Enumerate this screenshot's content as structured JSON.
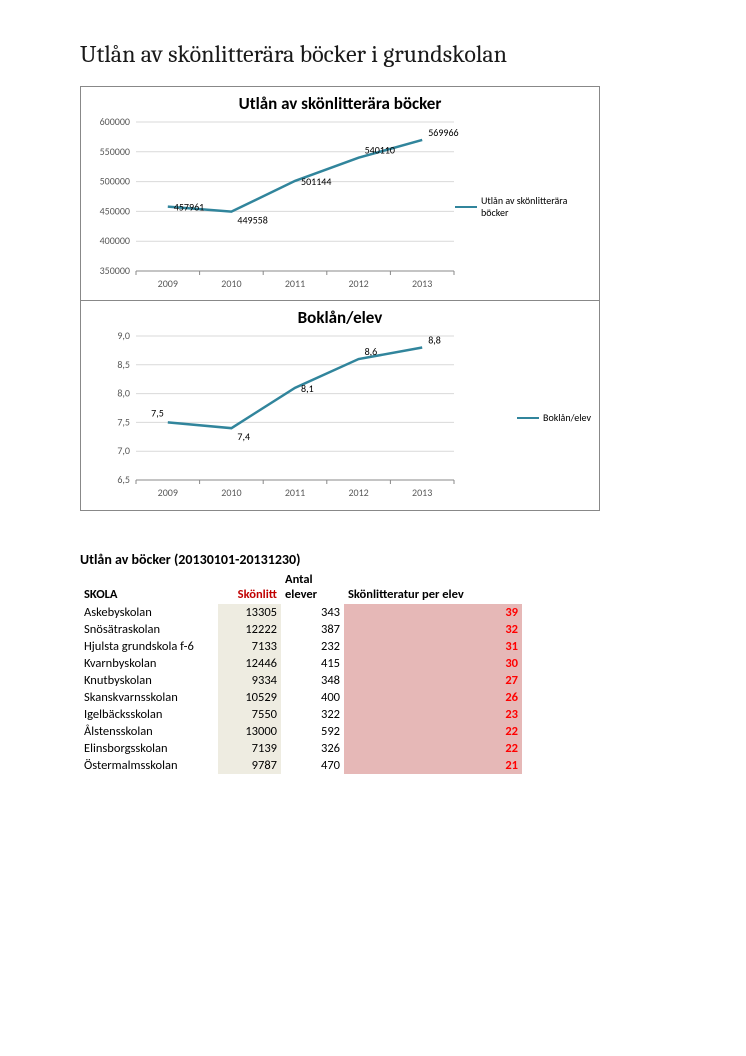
{
  "pageTitle": "Utlån av skölitterära böcker i grundskolan",
  "pageTitleActual": "Utlån av skönlitterära böcker i grundskolan",
  "chart1": {
    "type": "line",
    "title": "Utlån av skönlitterära böcker",
    "legend": "Utlån av skönlitterära böcker",
    "lineColor": "#31859c",
    "gridColor": "#d9d9d9",
    "axisColor": "#888888",
    "background": "#ffffff",
    "categories": [
      "2009",
      "2010",
      "2011",
      "2012",
      "2013"
    ],
    "values": [
      457961,
      449558,
      501144,
      540110,
      569966
    ],
    "ylim": [
      350000,
      600000
    ],
    "ytick_step": 50000,
    "title_fontsize": 17,
    "label_fontsize": 10
  },
  "chart2": {
    "type": "line",
    "title": "Boklån/elev",
    "legend": "Boklån/elev",
    "lineColor": "#31859c",
    "gridColor": "#d9d9d9",
    "axisColor": "#888888",
    "background": "#ffffff",
    "categories": [
      "2009",
      "2010",
      "2011",
      "2012",
      "2013"
    ],
    "values": [
      7.5,
      7.4,
      8.1,
      8.6,
      8.8
    ],
    "labels": [
      "7,5",
      "7,4",
      "8,1",
      "8,6",
      "8,8"
    ],
    "ylim": [
      6.5,
      9.0
    ],
    "ytick_step": 0.5,
    "ytick_labels": [
      "6,5",
      "7,0",
      "7,5",
      "8,0",
      "8,5",
      "9,0"
    ],
    "title_fontsize": 17,
    "label_fontsize": 10
  },
  "tableTitle": "Utlån av böcker (20130101-20131230)",
  "tableHeaders": {
    "skola": "SKOLA",
    "skonlitt": "Skönlitt",
    "elever": "Antal elever",
    "per": "Skönlitteratur per elev"
  },
  "tableColors": {
    "beige": "#eeece1",
    "pink": "#e6b8b7",
    "headerRed": "#c00000",
    "valueRed": "#ff0000"
  },
  "tableRows": [
    {
      "skola": "Askebyskolan",
      "skonlitt": 13305,
      "elever": 343,
      "per": 39
    },
    {
      "skola": "Snösätraskolan",
      "skonlitt": 12222,
      "elever": 387,
      "per": 32
    },
    {
      "skola": "Hjulsta grundskola f-6",
      "skonlitt": 7133,
      "elever": 232,
      "per": 31
    },
    {
      "skola": "Kvarnbyskolan",
      "skonlitt": 12446,
      "elever": 415,
      "per": 30
    },
    {
      "skola": "Knutbyskolan",
      "skonlitt": 9334,
      "elever": 348,
      "per": 27
    },
    {
      "skola": "Skanskvarnsskolan",
      "skonlitt": 10529,
      "elever": 400,
      "per": 26
    },
    {
      "skola": "Igelbäcksskolan",
      "skonlitt": 7550,
      "elever": 322,
      "per": 23
    },
    {
      "skola": "Ålstensskolan",
      "skonlitt": 13000,
      "elever": 592,
      "per": 22
    },
    {
      "skola": "Elinsborgsskolan",
      "skonlitt": 7139,
      "elever": 326,
      "per": 22
    },
    {
      "skola": "Östermalmsskolan",
      "skonlitt": 9787,
      "elever": 470,
      "per": 21
    }
  ]
}
